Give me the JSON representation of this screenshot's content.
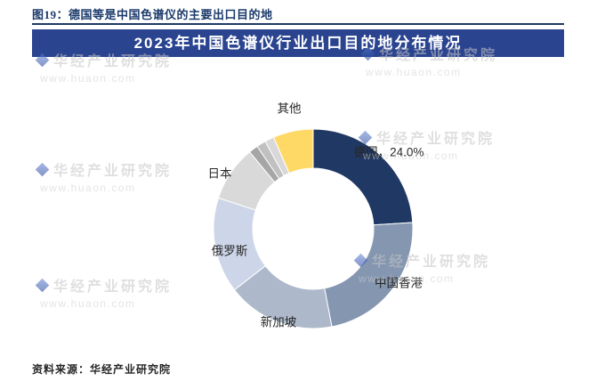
{
  "page": {
    "caption": "图19：德国等是中国色谱仪的主要出口目的地",
    "source": "资料来源：华经产业研究院"
  },
  "watermark": {
    "name": "华经产业研究院",
    "url": "www.huaon.com"
  },
  "chart_data": {
    "type": "pie",
    "subtype": "donut",
    "title": "2023年中国色谱仪行业出口目的地分布情况",
    "legend": "none",
    "grid": false,
    "slices": [
      {
        "label": "德国",
        "display": "德国，24.0%",
        "value": 24.0,
        "color": "#203864"
      },
      {
        "label": "中国香港",
        "display": "中国香港",
        "value": 23.0,
        "color": "#8496b0"
      },
      {
        "label": "新加坡",
        "display": "新加坡",
        "value": 17.5,
        "color": "#adb9ca"
      },
      {
        "label": "俄罗斯",
        "display": "俄罗斯",
        "value": 15.5,
        "color": "#cdd5e8"
      },
      {
        "label": "日本",
        "display": "日本",
        "value": 9.0,
        "color": "#d9d9d9"
      },
      {
        "label": "",
        "display": "",
        "value": 1.5,
        "color": "#a6a6a6"
      },
      {
        "label": "",
        "display": "",
        "value": 1.5,
        "color": "#c0c0c0"
      },
      {
        "label": "",
        "display": "",
        "value": 1.5,
        "color": "#d8d8d8"
      },
      {
        "label": "其他",
        "display": "其他",
        "value": 6.5,
        "color": "#ffd966"
      }
    ],
    "layout": {
      "center": [
        352,
        257
      ],
      "outer_radius": 112,
      "inner_radius": 68,
      "start_angle_deg": 0,
      "direction": "clockwise",
      "label_positions": [
        [
          437,
          172
        ],
        [
          448,
          319
        ],
        [
          313,
          363
        ],
        [
          258,
          283
        ],
        [
          247,
          196
        ],
        null,
        null,
        null,
        [
          325,
          123
        ]
      ]
    },
    "colors": {
      "title_bar_bg": "#2b4490",
      "title_bar_text": "#ffffff",
      "caption_text": "#1b3a6b",
      "accent_yellow": "#ffd966",
      "accent_navy": "#203864"
    }
  }
}
